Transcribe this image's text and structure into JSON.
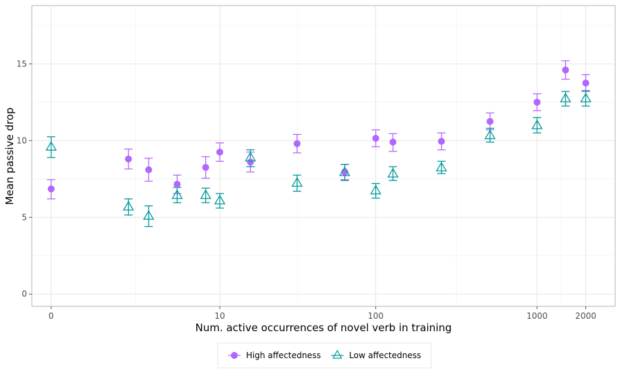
{
  "chart_data": {
    "type": "scatter",
    "title": "",
    "xlabel": "Num. active occurrences of novel verb in training",
    "ylabel": "Mean passive drop",
    "x_scale": "pseudo-log",
    "x_ticks": [
      0,
      10,
      100,
      1000,
      2000
    ],
    "x_tick_labels": [
      "0",
      "10",
      "100",
      "1000",
      "2000"
    ],
    "y_ticks": [
      0,
      5,
      10,
      15
    ],
    "y_tick_labels": [
      "0",
      "5",
      "10",
      "15"
    ],
    "ylim": [
      -0.8,
      18.8
    ],
    "grid": true,
    "legend_position": "bottom",
    "series": [
      {
        "name": "High affectedness",
        "marker": "circle",
        "color": "#b266ff",
        "x": [
          0,
          2,
          3,
          5,
          8,
          10,
          16,
          32,
          64,
          100,
          128,
          256,
          512,
          1000,
          1500,
          2000
        ],
        "y": [
          6.85,
          8.8,
          8.1,
          7.15,
          8.25,
          9.25,
          8.6,
          9.8,
          7.95,
          10.15,
          9.9,
          9.95,
          11.25,
          12.5,
          14.6,
          13.75
        ],
        "err_low": [
          6.2,
          8.15,
          7.35,
          6.55,
          7.55,
          8.65,
          7.95,
          9.2,
          7.45,
          9.6,
          9.3,
          9.4,
          10.7,
          11.95,
          14.0,
          13.2
        ],
        "err_high": [
          7.45,
          9.45,
          8.85,
          7.75,
          8.95,
          9.85,
          9.25,
          10.4,
          8.45,
          10.7,
          10.45,
          10.5,
          11.8,
          13.05,
          15.2,
          14.3
        ]
      },
      {
        "name": "Low affectedness",
        "marker": "triangle-open",
        "color": "#009999",
        "x": [
          0,
          2,
          3,
          5,
          8,
          10,
          16,
          32,
          64,
          100,
          128,
          256,
          512,
          1000,
          1500,
          2000
        ],
        "y": [
          9.6,
          5.7,
          5.1,
          6.45,
          6.45,
          6.1,
          8.9,
          7.25,
          7.95,
          6.75,
          7.85,
          8.25,
          10.35,
          11.0,
          12.75,
          12.75
        ],
        "err_low": [
          8.9,
          5.15,
          4.4,
          5.95,
          5.95,
          5.6,
          8.3,
          6.7,
          7.4,
          6.25,
          7.4,
          7.85,
          9.9,
          10.5,
          12.25,
          12.25
        ],
        "err_high": [
          10.25,
          6.2,
          5.75,
          6.95,
          6.9,
          6.55,
          9.4,
          7.75,
          8.45,
          7.2,
          8.3,
          8.65,
          10.8,
          11.5,
          13.2,
          13.25
        ]
      }
    ]
  }
}
